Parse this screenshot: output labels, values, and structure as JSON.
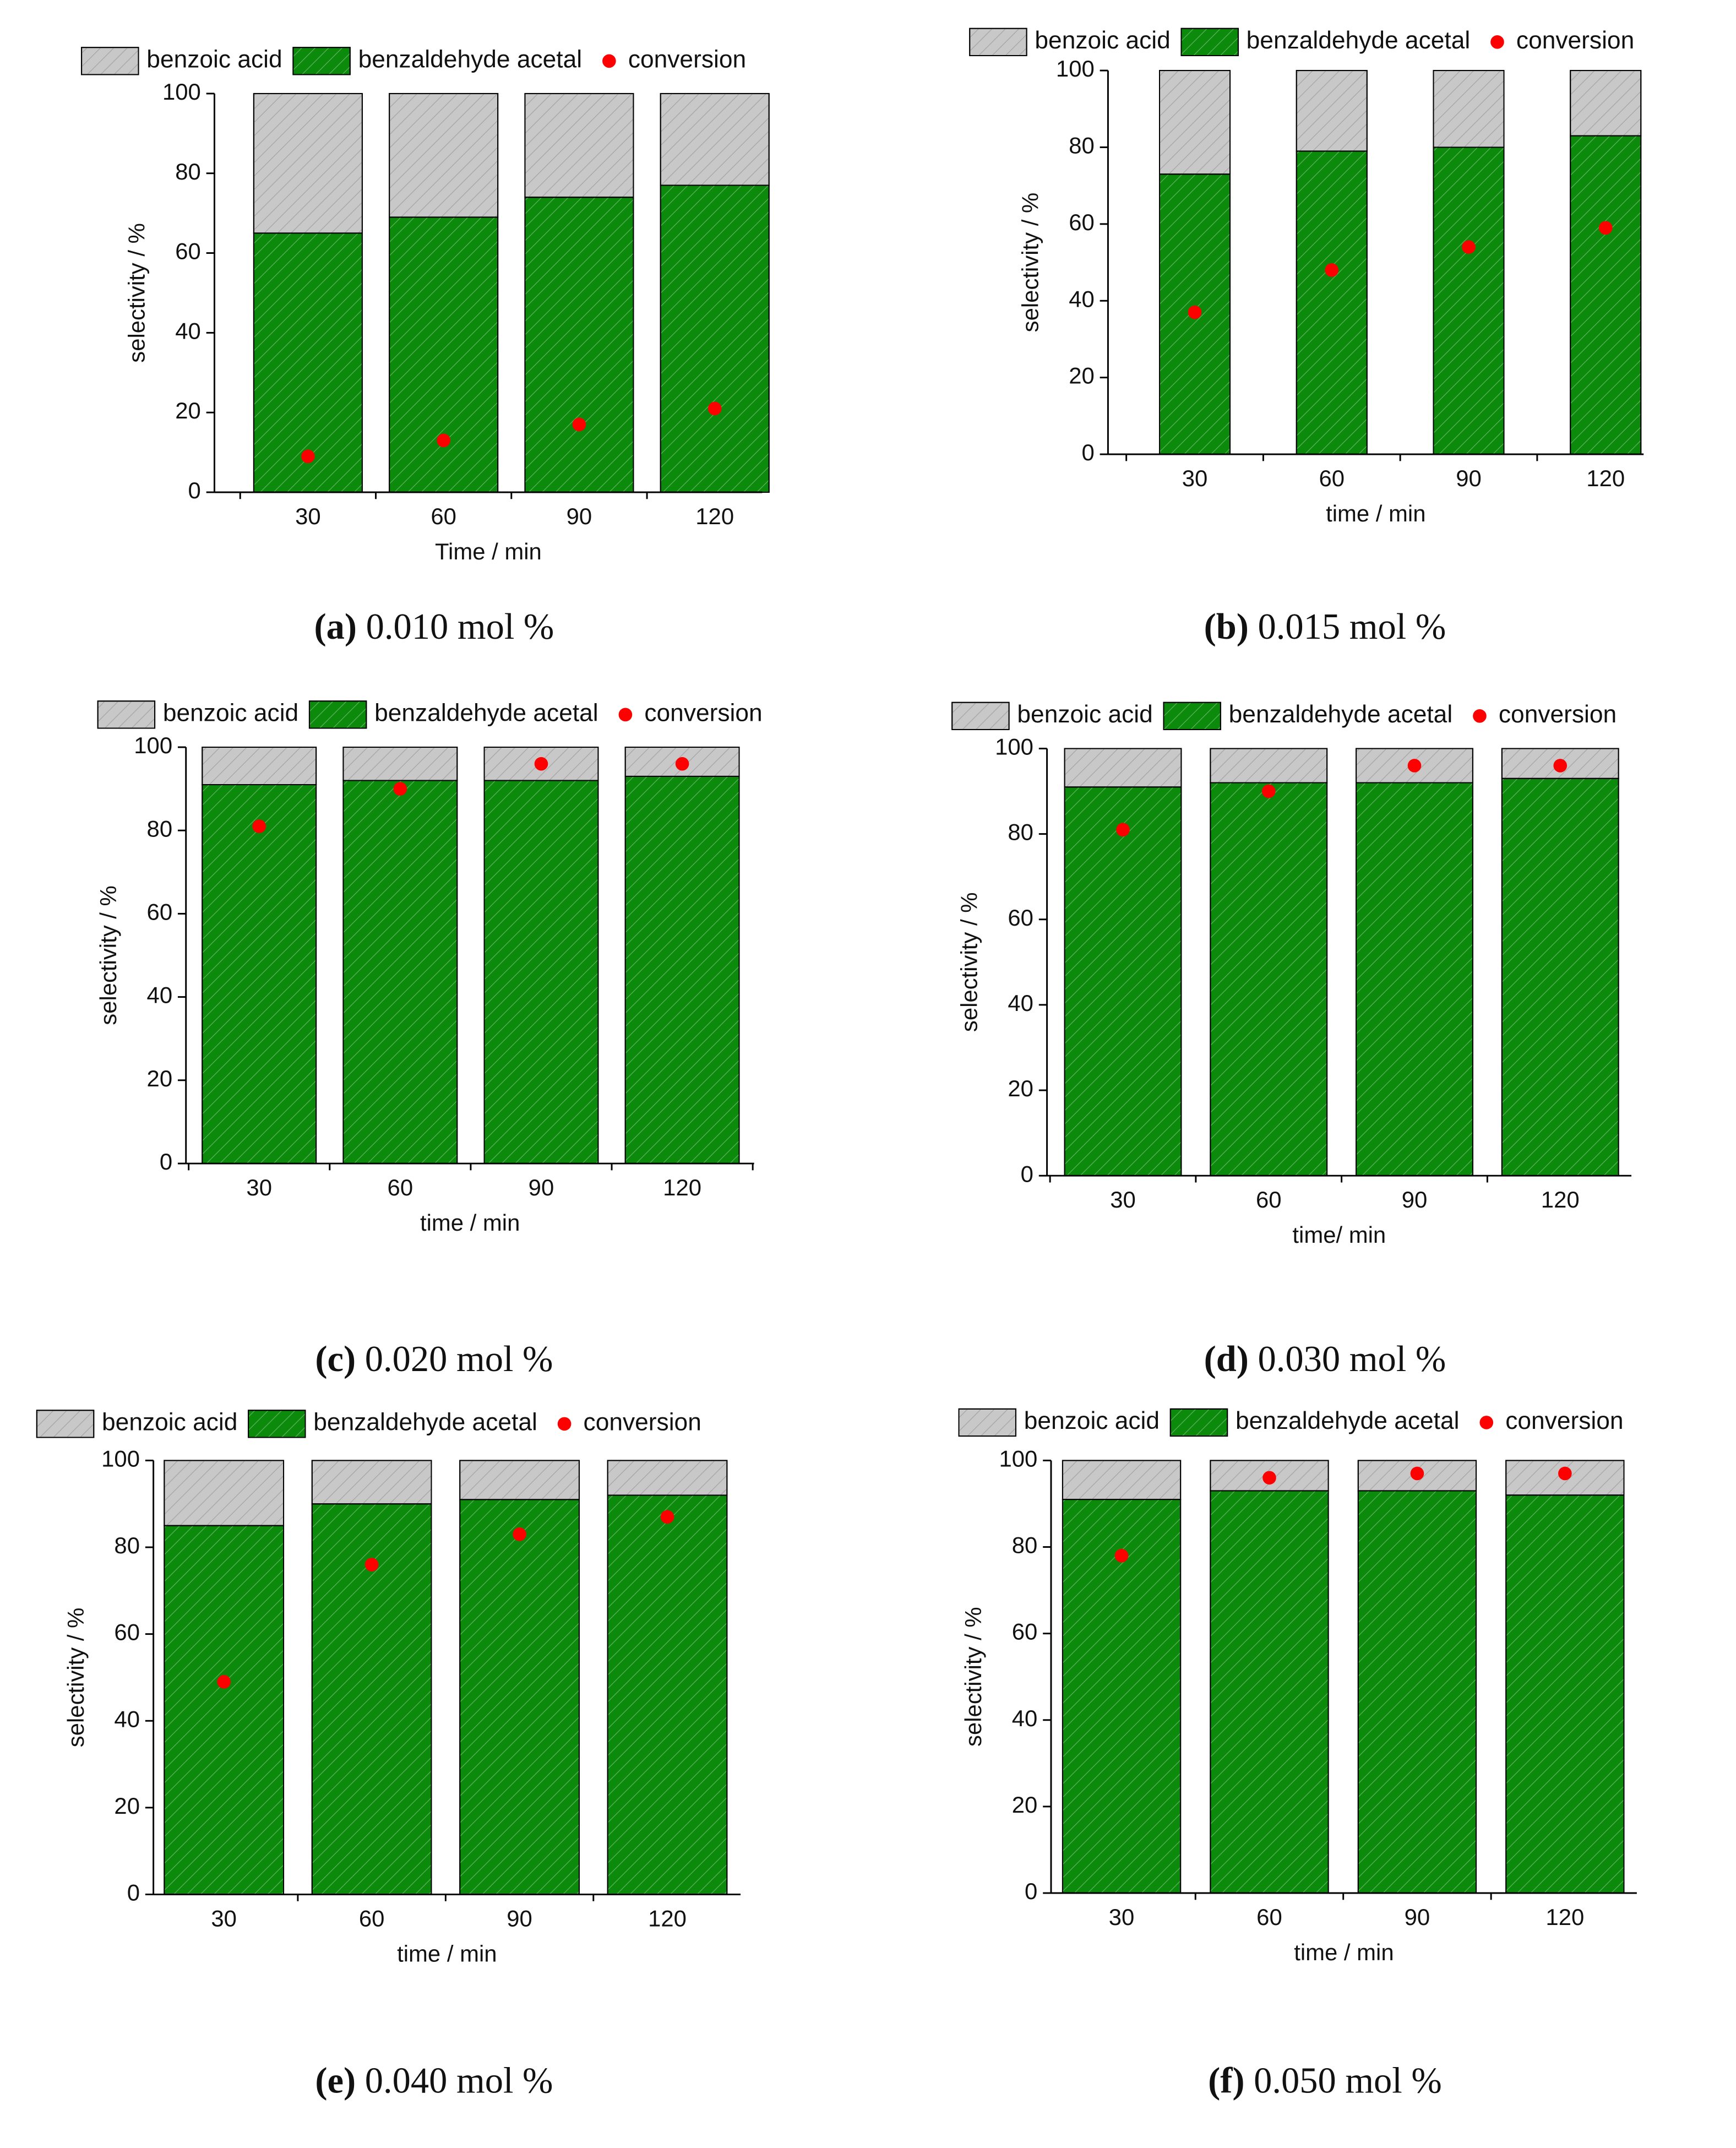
{
  "chart_data": [
    {
      "type": "stacked_bar",
      "caption_label": "(a)",
      "caption": "0.010 mol %",
      "xlabel": "Time / min",
      "ylabel": "selectivity / %",
      "categories": [
        "30",
        "60",
        "90",
        "120"
      ],
      "ylim": [
        0,
        100
      ],
      "yticks": [
        0,
        20,
        40,
        60,
        80,
        100
      ],
      "series": [
        {
          "name": "benzoic acid",
          "color": "#c8c8c8",
          "values": [
            35,
            31,
            26,
            23
          ]
        },
        {
          "name": "benzaldehyde acetal",
          "color": "#0b8a0b",
          "values": [
            65,
            69,
            74,
            77
          ]
        },
        {
          "name": "conversion",
          "color": "#ff0000",
          "type": "scatter",
          "values": [
            9,
            13,
            17,
            21
          ]
        }
      ]
    },
    {
      "type": "stacked_bar",
      "caption_label": "(b)",
      "caption": "0.015 mol %",
      "xlabel": "time / min",
      "ylabel": "selectivity / %",
      "categories": [
        "30",
        "60",
        "90",
        "120"
      ],
      "ylim": [
        0,
        100
      ],
      "yticks": [
        0,
        20,
        40,
        60,
        80,
        100
      ],
      "series": [
        {
          "name": "benzoic acid",
          "color": "#c8c8c8",
          "values": [
            27,
            21,
            20,
            17
          ]
        },
        {
          "name": "benzaldehyde acetal",
          "color": "#0b8a0b",
          "values": [
            73,
            79,
            80,
            83
          ]
        },
        {
          "name": "conversion",
          "color": "#ff0000",
          "type": "scatter",
          "values": [
            37,
            48,
            54,
            59
          ]
        }
      ]
    },
    {
      "type": "stacked_bar",
      "caption_label": "(c)",
      "caption": "0.020 mol %",
      "xlabel": "time / min",
      "ylabel": "selectivity / %",
      "categories": [
        "30",
        "60",
        "90",
        "120"
      ],
      "ylim": [
        0,
        100
      ],
      "yticks": [
        0,
        20,
        40,
        60,
        80,
        100
      ],
      "series": [
        {
          "name": "benzoic acid",
          "color": "#c8c8c8",
          "values": [
            9,
            8,
            8,
            7
          ]
        },
        {
          "name": "benzaldehyde acetal",
          "color": "#0b8a0b",
          "values": [
            91,
            92,
            92,
            93
          ]
        },
        {
          "name": "conversion",
          "color": "#ff0000",
          "type": "scatter",
          "values": [
            81,
            90,
            96,
            96
          ]
        }
      ]
    },
    {
      "type": "stacked_bar",
      "caption_label": "(d)",
      "caption": "0.030 mol %",
      "xlabel": "time/ min",
      "ylabel": "selectivity / %",
      "categories": [
        "30",
        "60",
        "90",
        "120"
      ],
      "ylim": [
        0,
        100
      ],
      "yticks": [
        0,
        20,
        40,
        60,
        80,
        100
      ],
      "series": [
        {
          "name": "benzoic acid",
          "color": "#c8c8c8",
          "values": [
            9,
            8,
            8,
            7
          ]
        },
        {
          "name": "benzaldehyde acetal",
          "color": "#0b8a0b",
          "values": [
            91,
            92,
            92,
            93
          ]
        },
        {
          "name": "conversion",
          "color": "#ff0000",
          "type": "scatter",
          "values": [
            81,
            90,
            96,
            96
          ]
        }
      ]
    },
    {
      "type": "stacked_bar",
      "caption_label": "(e)",
      "caption": "0.040 mol %",
      "xlabel": "time / min",
      "ylabel": "selectivity / %",
      "categories": [
        "30",
        "60",
        "90",
        "120"
      ],
      "ylim": [
        0,
        100
      ],
      "yticks": [
        0,
        20,
        40,
        60,
        80,
        100
      ],
      "series": [
        {
          "name": "benzoic acid",
          "color": "#c8c8c8",
          "values": [
            15,
            10,
            9,
            8
          ]
        },
        {
          "name": "benzaldehyde acetal",
          "color": "#0b8a0b",
          "values": [
            85,
            90,
            91,
            92
          ]
        },
        {
          "name": "conversion",
          "color": "#ff0000",
          "type": "scatter",
          "values": [
            49,
            76,
            83,
            87
          ]
        }
      ]
    },
    {
      "type": "stacked_bar",
      "caption_label": "(f)",
      "caption": "0.050 mol %",
      "xlabel": "time / min",
      "ylabel": "selectivity / %",
      "categories": [
        "30",
        "60",
        "90",
        "120"
      ],
      "ylim": [
        0,
        100
      ],
      "yticks": [
        0,
        20,
        40,
        60,
        80,
        100
      ],
      "series": [
        {
          "name": "benzoic acid",
          "color": "#c8c8c8",
          "values": [
            9,
            7,
            7,
            8
          ]
        },
        {
          "name": "benzaldehyde acetal",
          "color": "#0b8a0b",
          "values": [
            91,
            93,
            93,
            92
          ]
        },
        {
          "name": "conversion",
          "color": "#ff0000",
          "type": "scatter",
          "values": [
            78,
            96,
            97,
            97
          ]
        }
      ]
    }
  ]
}
